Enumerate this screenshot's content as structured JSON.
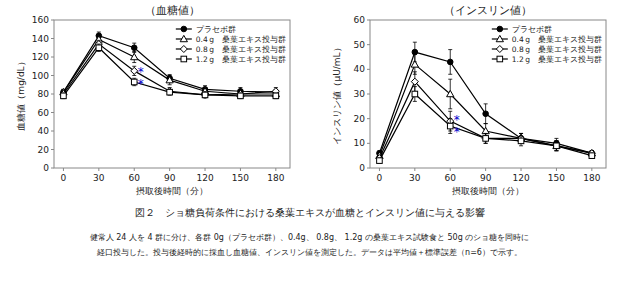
{
  "chart_data": [
    {
      "type": "line",
      "title": "（血糖値）",
      "x_label": "摂取後時間（分）",
      "y_label": "血糖値（mg/dL）",
      "x": [
        0,
        30,
        60,
        90,
        120,
        150,
        180
      ],
      "xlim": [
        -8,
        192
      ],
      "xticks": [
        0,
        30,
        60,
        90,
        120,
        150,
        180
      ],
      "ylim": [
        0,
        160
      ],
      "yticks": [
        0,
        20,
        40,
        60,
        80,
        100,
        120,
        140,
        160
      ],
      "grid": false,
      "legend": "upper right",
      "series": [
        {
          "name": "プラセボ群",
          "color": "#000000",
          "marker": "circle",
          "line_style": "solid",
          "values": [
            82,
            143,
            130,
            97,
            85,
            83,
            82
          ],
          "errors": [
            3,
            4,
            5,
            4,
            4,
            4,
            3
          ]
        },
        {
          "name": "0.4 g　桑葉エキス投与群",
          "color": "#000000",
          "marker": "triangle-open",
          "line_style": "solid",
          "values": [
            82,
            139,
            120,
            95,
            83,
            80,
            80
          ],
          "errors": [
            3,
            4,
            6,
            5,
            3,
            3,
            3
          ]
        },
        {
          "name": "0.8 g　桑葉エキス投与群",
          "color": "#000000",
          "marker": "diamond-open",
          "line_style": "solid",
          "values": [
            80,
            134,
            105,
            83,
            79,
            80,
            83
          ],
          "errors": [
            3,
            4,
            5,
            4,
            3,
            4,
            4
          ]
        },
        {
          "name": "1.2 g　桑葉エキス投与群",
          "color": "#000000",
          "marker": "square-open",
          "line_style": "solid",
          "values": [
            78,
            130,
            93,
            82,
            79,
            78,
            78
          ],
          "errors": [
            3,
            4,
            4,
            3,
            3,
            3,
            3
          ]
        }
      ],
      "annotations": [
        {
          "text": "*",
          "x": 63,
          "y": 103,
          "color": "#0000cc"
        },
        {
          "text": "*",
          "x": 63,
          "y": 90,
          "color": "#0000cc"
        }
      ],
      "caption": "図２　ショ糖負荷条件における桑葉エキスが血糖とインスリン値に与える影響",
      "notes": [
        "健常人 24 人を 4 群に分け、各群 0g（プラセボ群）、0.4g、 0.8g、 1.2g の桑葉エキス試験食と 50g のショ糖を同時に",
        "経口投与した。投与後経時的に採血し血糖値、インスリン値を測定した。データは平均値＋標準誤差（n=6）で示す。"
      ]
    },
    {
      "type": "line",
      "title": "（インスリン値）",
      "x_label": "摂取後時間（分）",
      "y_label": "インスリン値（μU/mL）",
      "x": [
        0,
        30,
        60,
        90,
        120,
        150,
        180
      ],
      "xlim": [
        -8,
        192
      ],
      "xticks": [
        0,
        30,
        60,
        90,
        120,
        150,
        180
      ],
      "ylim": [
        0,
        60
      ],
      "yticks": [
        0,
        10,
        20,
        30,
        40,
        50,
        60
      ],
      "grid": false,
      "legend": "upper right",
      "series": [
        {
          "name": "プラセボ群",
          "color": "#000000",
          "marker": "circle",
          "line_style": "solid",
          "values": [
            6,
            47,
            43,
            22,
            12,
            10,
            6
          ],
          "errors": [
            1,
            4,
            5,
            4,
            2,
            2,
            1
          ]
        },
        {
          "name": "0.4 g　桑葉エキス投与群",
          "color": "#000000",
          "marker": "triangle-open",
          "line_style": "solid",
          "values": [
            5,
            42,
            30,
            15,
            12,
            9,
            6
          ],
          "errors": [
            1,
            4,
            6,
            3,
            2,
            2,
            1
          ]
        },
        {
          "name": "0.8 g　桑葉エキス投与群",
          "color": "#000000",
          "marker": "diamond-open",
          "line_style": "solid",
          "values": [
            4,
            35,
            19,
            12,
            12,
            9,
            6
          ],
          "errors": [
            1,
            4,
            4,
            2,
            2,
            2,
            1
          ]
        },
        {
          "name": "1.2 g　桑葉エキス投与群",
          "color": "#000000",
          "marker": "square-open",
          "line_style": "solid",
          "values": [
            3,
            30,
            17,
            12,
            11,
            9,
            5
          ],
          "errors": [
            1,
            3,
            3,
            2,
            2,
            2,
            1
          ]
        }
      ],
      "annotations": [
        {
          "text": "*",
          "x": 63,
          "y": 19,
          "color": "#0000cc"
        },
        {
          "text": "*",
          "x": 63,
          "y": 14,
          "color": "#0000cc"
        }
      ]
    }
  ]
}
